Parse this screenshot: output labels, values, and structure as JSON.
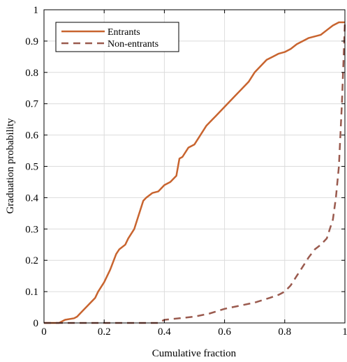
{
  "chart_data": {
    "type": "line",
    "title": "",
    "xlabel": "Cumulative fraction",
    "ylabel": "Graduation probability",
    "xlim": [
      0,
      1
    ],
    "ylim": [
      0,
      1
    ],
    "xticks": [
      0,
      0.2,
      0.4,
      0.6,
      0.8,
      1
    ],
    "yticks": [
      0,
      0.1,
      0.2,
      0.3,
      0.4,
      0.5,
      0.6,
      0.7,
      0.8,
      0.9,
      1
    ],
    "xtick_labels": [
      "0",
      "0.2",
      "0.4",
      "0.6",
      "0.8",
      "1"
    ],
    "ytick_labels": [
      "0",
      "0.1",
      "0.2",
      "0.3",
      "0.4",
      "0.5",
      "0.6",
      "0.7",
      "0.8",
      "0.9",
      "1"
    ],
    "grid": true,
    "legend_position": "top-left",
    "series": [
      {
        "name": "Entrants",
        "color": "#c8642f",
        "dash": "solid",
        "x": [
          0,
          0.05,
          0.07,
          0.1,
          0.11,
          0.13,
          0.15,
          0.17,
          0.18,
          0.2,
          0.22,
          0.24,
          0.25,
          0.27,
          0.28,
          0.3,
          0.31,
          0.33,
          0.34,
          0.36,
          0.38,
          0.4,
          0.42,
          0.44,
          0.45,
          0.46,
          0.48,
          0.5,
          0.52,
          0.54,
          0.56,
          0.57,
          0.58,
          0.6,
          0.62,
          0.64,
          0.66,
          0.68,
          0.7,
          0.72,
          0.74,
          0.76,
          0.78,
          0.8,
          0.82,
          0.84,
          0.86,
          0.88,
          0.9,
          0.92,
          0.94,
          0.96,
          0.98,
          1.0
        ],
        "y": [
          0,
          0,
          0.01,
          0.015,
          0.02,
          0.04,
          0.06,
          0.08,
          0.1,
          0.13,
          0.17,
          0.22,
          0.235,
          0.25,
          0.27,
          0.3,
          0.33,
          0.39,
          0.4,
          0.415,
          0.42,
          0.44,
          0.45,
          0.47,
          0.525,
          0.53,
          0.56,
          0.57,
          0.6,
          0.63,
          0.65,
          0.66,
          0.67,
          0.69,
          0.71,
          0.73,
          0.75,
          0.77,
          0.8,
          0.82,
          0.84,
          0.85,
          0.86,
          0.865,
          0.875,
          0.89,
          0.9,
          0.91,
          0.915,
          0.92,
          0.935,
          0.95,
          0.96,
          0.96
        ]
      },
      {
        "name": "Non-entrants",
        "color": "#9a5a4e",
        "dash": "dashed",
        "x": [
          0,
          0.2,
          0.38,
          0.4,
          0.45,
          0.5,
          0.55,
          0.6,
          0.65,
          0.7,
          0.75,
          0.78,
          0.8,
          0.82,
          0.84,
          0.86,
          0.88,
          0.9,
          0.92,
          0.94,
          0.95,
          0.96,
          0.97,
          0.98,
          0.99,
          1.0
        ],
        "y": [
          0,
          0,
          0,
          0.01,
          0.015,
          0.02,
          0.03,
          0.045,
          0.055,
          0.065,
          0.08,
          0.09,
          0.1,
          0.12,
          0.15,
          0.18,
          0.21,
          0.235,
          0.25,
          0.27,
          0.3,
          0.33,
          0.4,
          0.5,
          0.7,
          0.96
        ]
      }
    ]
  }
}
